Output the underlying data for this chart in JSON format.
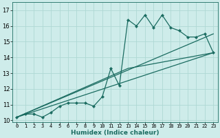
{
  "xlabel": "Humidex (Indice chaleur)",
  "bg_color": "#ceecea",
  "grid_color": "#aed8d4",
  "line_color": "#1a6b60",
  "xlim": [
    -0.5,
    23.5
  ],
  "ylim": [
    9.9,
    17.5
  ],
  "xticks": [
    0,
    1,
    2,
    3,
    4,
    5,
    6,
    7,
    8,
    9,
    10,
    11,
    12,
    13,
    14,
    15,
    16,
    17,
    18,
    19,
    20,
    21,
    22,
    23
  ],
  "yticks": [
    10,
    11,
    12,
    13,
    14,
    15,
    16,
    17
  ],
  "jagged_x": [
    0,
    1,
    2,
    3,
    4,
    5,
    6,
    7,
    8,
    9,
    10,
    11,
    12,
    13,
    14,
    15,
    16,
    17,
    18,
    19,
    20,
    21,
    22,
    23
  ],
  "jagged_y": [
    10.2,
    10.4,
    10.4,
    10.2,
    10.5,
    10.9,
    11.1,
    11.1,
    11.1,
    10.9,
    11.5,
    13.3,
    12.2,
    16.4,
    16.0,
    16.7,
    15.9,
    16.7,
    15.9,
    15.7,
    15.3,
    15.3,
    15.5,
    14.3
  ],
  "line1_x": [
    0,
    23
  ],
  "line1_y": [
    10.2,
    14.3
  ],
  "line2_x": [
    0,
    23
  ],
  "line2_y": [
    10.2,
    15.5
  ],
  "line3_x": [
    0,
    13,
    23
  ],
  "line3_y": [
    10.2,
    13.3,
    14.3
  ],
  "xtick_fontsize": 5.0,
  "ytick_fontsize": 6.0,
  "xlabel_fontsize": 6.5
}
